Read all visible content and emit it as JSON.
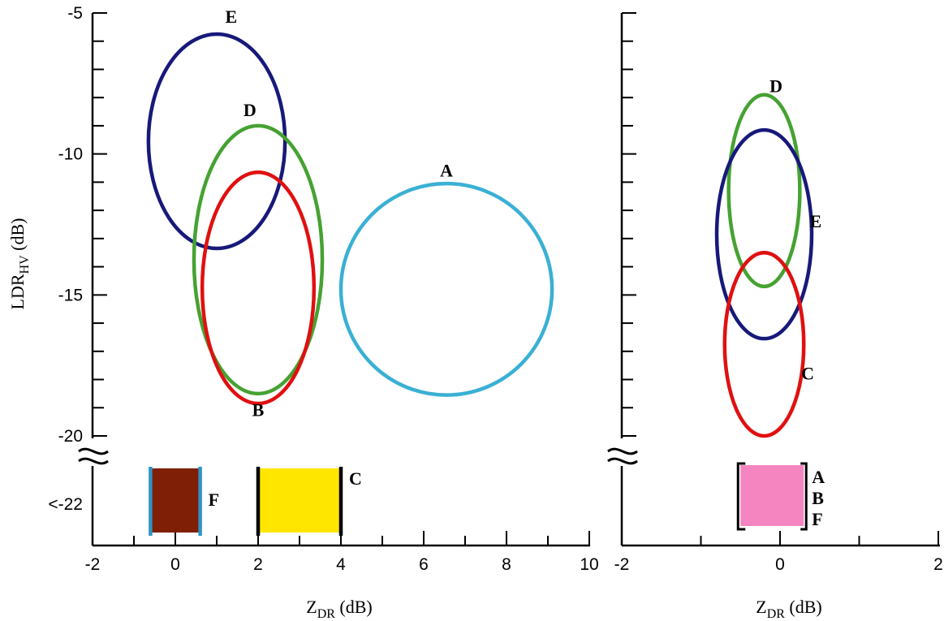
{
  "chart_data": [
    {
      "type": "scatter",
      "title": "",
      "xlabel": {
        "main": "Z",
        "sub": "DR",
        "unit": " (dB)"
      },
      "ylabel": {
        "main": "LDR",
        "sub": "HV",
        "unit": " (dB)"
      },
      "xlim": [
        -2,
        10
      ],
      "ylim": [
        -20,
        -5
      ],
      "x_ticks": [
        "-2",
        "0",
        "2",
        "4",
        "6",
        "8",
        "10"
      ],
      "y_ticks": [
        "-5",
        "-10",
        "-15",
        "-20",
        "<-22"
      ],
      "axis_break_label": "<-22",
      "grid": false,
      "ellipses": [
        {
          "label": "E",
          "color": "#17197a",
          "cx": 1.0,
          "cy": -9.55,
          "rx": 1.65,
          "ry": 3.8
        },
        {
          "label": "D",
          "color": "#46a232",
          "cx": 2.0,
          "cy": -13.75,
          "rx": 1.55,
          "ry": 4.75
        },
        {
          "label": "B",
          "color": "#e01010",
          "cx": 2.0,
          "cy": -14.75,
          "rx": 1.35,
          "ry": 4.1
        },
        {
          "label": "A",
          "color": "#3ab0d4",
          "cx": 6.55,
          "cy": -14.8,
          "rx": 2.55,
          "ry": 3.75
        }
      ],
      "ellipse_labels": [
        {
          "text": "E",
          "x": 1.35,
          "y": -5.35
        },
        {
          "text": "D",
          "x": 1.8,
          "y": -8.65
        },
        {
          "text": "B",
          "x": 2.0,
          "y": -19.3
        },
        {
          "text": "A",
          "x": 6.55,
          "y": -10.8
        }
      ],
      "ranges_below_break": [
        {
          "label": "F",
          "color": "#7e1f06",
          "edge_color": "#2f93c5",
          "x0": -0.6,
          "x1": 0.6
        },
        {
          "label": "C",
          "color": "#ffe600",
          "edge_color": "#000000",
          "x0": 2.0,
          "x1": 4.0
        }
      ]
    },
    {
      "type": "scatter",
      "title": "",
      "xlabel": {
        "main": "Z",
        "sub": "DR",
        "unit": " (dB)"
      },
      "ylabel": "",
      "xlim": [
        -2,
        2
      ],
      "ylim": [
        -20,
        -5
      ],
      "x_ticks": [
        "-2",
        "0",
        "2"
      ],
      "grid": false,
      "ellipses": [
        {
          "label": "D",
          "color": "#46a232",
          "cx": -0.2,
          "cy": -11.3,
          "rx": 0.45,
          "ry": 3.4
        },
        {
          "label": "E",
          "color": "#17197a",
          "cx": -0.2,
          "cy": -12.85,
          "rx": 0.6,
          "ry": 3.7
        },
        {
          "label": "C",
          "color": "#e01010",
          "cx": -0.2,
          "cy": -16.75,
          "rx": 0.5,
          "ry": 3.25
        }
      ],
      "ellipse_labels": [
        {
          "text": "D",
          "x": -0.05,
          "y": -7.8
        },
        {
          "text": "E",
          "x": 0.45,
          "y": -12.6
        },
        {
          "text": "C",
          "x": 0.35,
          "y": -18.0
        }
      ],
      "ranges_below_break": [
        {
          "label": "A\nB\nF",
          "labels": [
            "A",
            "B",
            "F"
          ],
          "color": "#f585c0",
          "edge_color": "#000000",
          "x0": -0.5,
          "x1": 0.3
        }
      ]
    }
  ]
}
